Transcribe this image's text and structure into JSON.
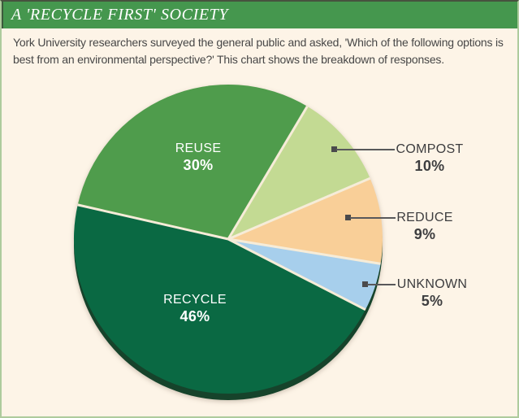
{
  "header": {
    "title": "A 'RECYCLE FIRST' SOCIETY"
  },
  "description": {
    "lines": [
      "York University researchers surveyed the general public and asked, 'Which of the following options is",
      "best from an environmental perspective?' This chart shows the breakdown of responses."
    ]
  },
  "chart_data": {
    "type": "pie",
    "title": "A 'RECYCLE FIRST' SOCIETY",
    "start_angle_deg_clockwise_from_top": 30.8,
    "slices": [
      {
        "label": "COMPOST",
        "value": 10,
        "pct": "10%",
        "color": "#c3da93",
        "label_side": "outside-right"
      },
      {
        "label": "REDUCE",
        "value": 9,
        "pct": "9%",
        "color": "#f9cf98",
        "label_side": "outside-right"
      },
      {
        "label": "UNKNOWN",
        "value": 5,
        "pct": "5%",
        "color": "#a7cfec",
        "label_side": "outside-right"
      },
      {
        "label": "RECYCLE",
        "value": 46,
        "pct": "46%",
        "color": "#0a6943",
        "label_side": "inside"
      },
      {
        "label": "REUSE",
        "value": 30,
        "pct": "30%",
        "color": "#4f9c4c",
        "label_side": "inside"
      }
    ],
    "shadow_color": "#16432b",
    "separator_color": "#f6ecd8",
    "legend_position": "none",
    "units": "%"
  },
  "colors": {
    "header_bg": "#45974e",
    "card_bg": "#fdf4e7",
    "card_border": "#aecb9d",
    "label_text": "#3d3d3f",
    "leader_line": "#58585a",
    "inner_label_text": "#ffffff"
  }
}
